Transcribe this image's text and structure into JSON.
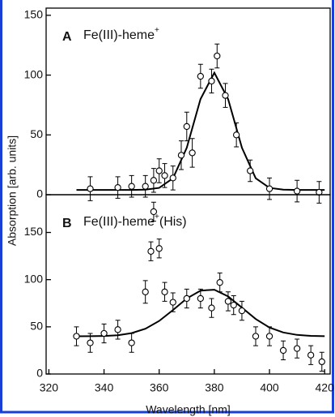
{
  "chart_data": [
    {
      "type": "scatter",
      "panel_label": "A",
      "label": "Fe(III)-heme",
      "label_sup": "+",
      "ylabel": "Absorption [arb. units]",
      "xlim": [
        319,
        422
      ],
      "ylim": [
        0,
        156
      ],
      "yticks": [
        0,
        50,
        100,
        150
      ],
      "series": [
        {
          "color": "#000000",
          "x": [
            335,
            345,
            350,
            355,
            358,
            360,
            362,
            365,
            368,
            370,
            372,
            375,
            379,
            381,
            384,
            388,
            393,
            400,
            410,
            418
          ],
          "values": [
            5,
            6,
            7,
            7,
            12,
            20,
            16,
            14,
            33,
            57,
            35,
            99,
            95,
            116,
            83,
            50,
            20,
            5,
            3,
            2
          ],
          "errors": [
            10,
            9,
            9,
            9,
            10,
            10,
            10,
            10,
            12,
            12,
            12,
            10,
            10,
            10,
            10,
            10,
            9,
            9,
            9,
            9
          ]
        }
      ],
      "fit": {
        "color": "#000000",
        "x": [
          330,
          335,
          340,
          345,
          350,
          355,
          360,
          365,
          370,
          375,
          380,
          385,
          390,
          395,
          400,
          405,
          410,
          415,
          420
        ],
        "values": [
          4,
          4,
          4,
          4,
          4,
          4.2,
          5.7,
          13.8,
          39.3,
          80,
          102,
          80,
          39.3,
          13.8,
          5.7,
          4.2,
          4,
          4,
          4
        ]
      }
    },
    {
      "type": "scatter",
      "panel_label": "B",
      "label": "Fe(III)-heme",
      "label_sup": "+",
      "label_suffix": "(His)",
      "xlabel": "Wavelength [nm]",
      "xlim": [
        319,
        422
      ],
      "xticks": [
        320,
        340,
        360,
        380,
        400,
        420
      ],
      "ylim": [
        0,
        190
      ],
      "yticks": [
        0,
        50,
        100,
        150
      ],
      "series": [
        {
          "color": "#000000",
          "x": [
            330,
            335,
            340,
            345,
            350,
            355,
            357,
            358,
            360,
            362,
            365,
            370,
            375,
            379,
            382,
            385,
            387,
            390,
            395,
            400,
            405,
            410,
            415,
            419
          ],
          "values": [
            40,
            33,
            43,
            47,
            33,
            87,
            130,
            172,
            133,
            87,
            76,
            80,
            80,
            70,
            97,
            77,
            73,
            67,
            40,
            40,
            25,
            27,
            20,
            13
          ],
          "errors": [
            10,
            10,
            10,
            10,
            10,
            12,
            10,
            10,
            10,
            10,
            10,
            10,
            10,
            10,
            10,
            10,
            10,
            10,
            10,
            10,
            10,
            10,
            10,
            10
          ]
        }
      ],
      "fit": {
        "color": "#000000",
        "x": [
          330,
          335,
          340,
          345,
          350,
          355,
          360,
          365,
          370,
          375,
          380,
          385,
          390,
          395,
          400,
          405,
          410,
          415,
          420
        ],
        "values": [
          40,
          40.1,
          40.3,
          41.1,
          43.3,
          48,
          56.2,
          67.8,
          80,
          88.4,
          89.3,
          82.2,
          70.3,
          58.3,
          49.3,
          44,
          41.4,
          40.4,
          40.1
        ]
      }
    }
  ]
}
